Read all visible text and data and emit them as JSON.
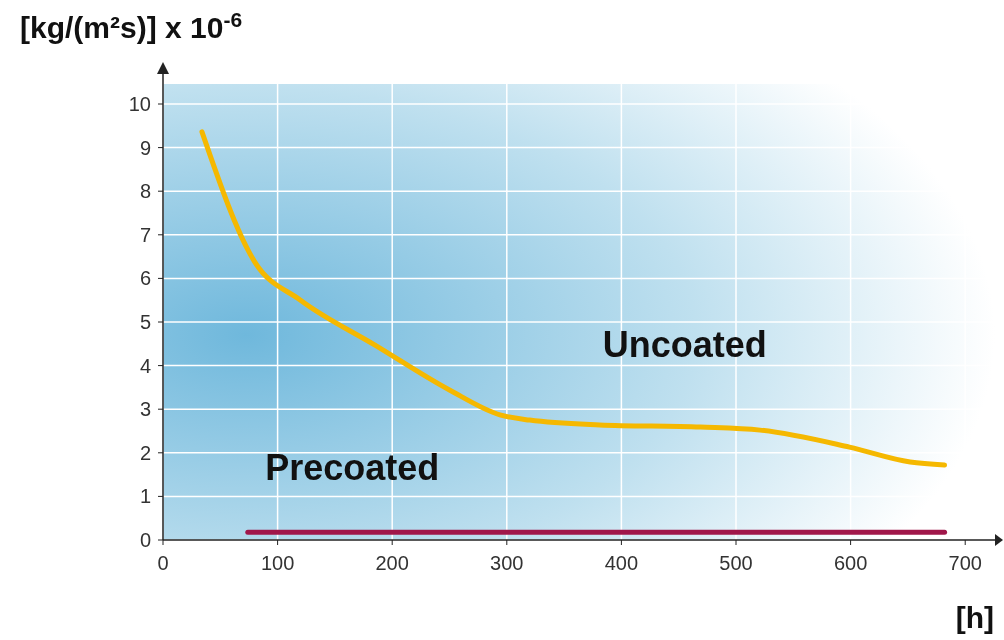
{
  "chart_data": {
    "type": "line",
    "ylabel": "[kg/(m²s)] x 10$^{-6}$",
    "xlabel": "[h]",
    "xlim": [
      0,
      726
    ],
    "xticks": [
      0,
      100,
      200,
      300,
      400,
      500,
      600,
      700
    ],
    "ylim": [
      0,
      10
    ],
    "yticks": [
      0,
      1,
      2,
      3,
      4,
      5,
      6,
      7,
      8,
      9,
      10
    ],
    "grid": true,
    "marker": "none",
    "line_style": "solid",
    "series": [
      {
        "name": "Uncoated",
        "color": "#f5b800",
        "x": [
          34,
          80,
          120,
          185,
          250,
          294,
          320,
          381,
          469,
          521,
          599,
          652,
          682
        ],
        "values": [
          9.36,
          6.38,
          5.5,
          4.47,
          3.44,
          2.87,
          2.75,
          2.64,
          2.59,
          2.52,
          2.13,
          1.79,
          1.72
        ]
      },
      {
        "name": "Precoated",
        "color": "#a0174a",
        "x": [
          74,
          682
        ],
        "values": [
          0.18,
          0.18
        ]
      }
    ]
  }
}
